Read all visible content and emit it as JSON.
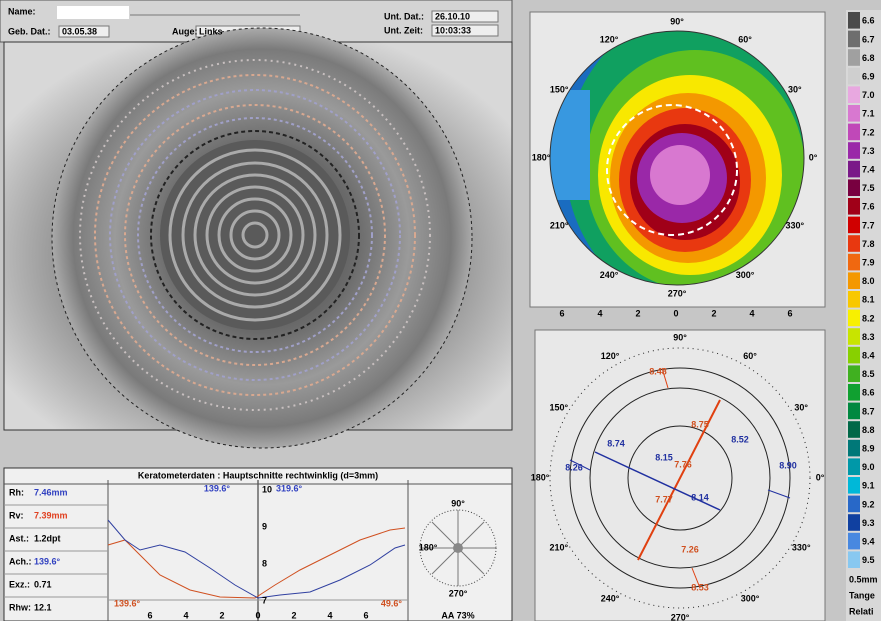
{
  "header": {
    "name_label": "Name:",
    "birth_label": "Geb. Dat.:",
    "birth_value": "03.05.38",
    "eye_label": "Auge:",
    "eye_value": "Links",
    "exam_date_label": "Unt. Dat.:",
    "exam_date_value": "26.10.10",
    "exam_time_label": "Unt. Zeit:",
    "exam_time_value": "10:03:33"
  },
  "keratometry": {
    "title": "Keratometerdaten : Hauptschnitte rechtwinklig (d=3mm)",
    "rows": [
      {
        "label": "Rh:",
        "value": "7.46mm",
        "color": "#3040c0"
      },
      {
        "label": "Rv:",
        "value": "7.39mm",
        "color": "#e04020"
      },
      {
        "label": "Ast.:",
        "value": "1.2dpt",
        "color": "#000000"
      },
      {
        "label": "Ach.:",
        "value": "139.6°",
        "color": "#3040c0"
      },
      {
        "label": "Exz.:",
        "value": "0.71",
        "color": "#000000"
      },
      {
        "label": "Rhw:",
        "value": "12.1",
        "color": "#000000"
      }
    ],
    "axis_left": "139.6°",
    "axis_right": "319.6°",
    "yticks": [
      "10",
      "9",
      "8",
      "7"
    ],
    "xticks": [
      "6",
      "4",
      "2",
      "0",
      "2",
      "4",
      "6"
    ],
    "corner_left": "139.6°",
    "corner_right": "49.6°",
    "mini_labels": [
      "90°",
      "180°",
      "270°"
    ],
    "footer": "AA 73%"
  },
  "map": {
    "angles": [
      "90°",
      "60°",
      "30°",
      "0°",
      "330°",
      "300°",
      "270°",
      "240°",
      "210°",
      "180°",
      "150°",
      "120°"
    ],
    "xticks": [
      "6",
      "4",
      "2",
      "0",
      "2",
      "4",
      "6"
    ]
  },
  "diagram": {
    "angles": [
      "90°",
      "60°",
      "30°",
      "0°",
      "330°",
      "300°",
      "270°",
      "240°",
      "210°",
      "180°",
      "150°",
      "120°"
    ],
    "values": [
      {
        "text": "8.48",
        "color": "#d05020"
      },
      {
        "text": "8.75",
        "color": "#d05020"
      },
      {
        "text": "8.52",
        "color": "#2030a0"
      },
      {
        "text": "8.90",
        "color": "#2030a0"
      },
      {
        "text": "8.26",
        "color": "#2030a0"
      },
      {
        "text": "8.74",
        "color": "#2030a0"
      },
      {
        "text": "8.15",
        "color": "#2030a0"
      },
      {
        "text": "7.76",
        "color": "#d05020"
      },
      {
        "text": "7.77",
        "color": "#d05020"
      },
      {
        "text": "8.14",
        "color": "#2030a0"
      },
      {
        "text": "7.26",
        "color": "#d05020"
      },
      {
        "text": "8.53",
        "color": "#d05020"
      }
    ]
  },
  "scale": {
    "rows": [
      {
        "label": "6.6",
        "color": "#4a4a4a"
      },
      {
        "label": "6.7",
        "color": "#6e6e6e"
      },
      {
        "label": "6.8",
        "color": "#a0a0a0"
      },
      {
        "label": "6.9",
        "color": "#cfcfcf"
      },
      {
        "label": "7.0",
        "color": "#e8a8e0"
      },
      {
        "label": "7.1",
        "color": "#d878d0"
      },
      {
        "label": "7.2",
        "color": "#c048b8"
      },
      {
        "label": "7.3",
        "color": "#9a28a8"
      },
      {
        "label": "7.4",
        "color": "#7a1888"
      },
      {
        "label": "7.5",
        "color": "#780040"
      },
      {
        "label": "7.6",
        "color": "#a00018"
      },
      {
        "label": "7.7",
        "color": "#d00000"
      },
      {
        "label": "7.8",
        "color": "#e83810"
      },
      {
        "label": "7.9",
        "color": "#f06810"
      },
      {
        "label": "8.0",
        "color": "#f49800"
      },
      {
        "label": "8.1",
        "color": "#f8c800"
      },
      {
        "label": "8.2",
        "color": "#f8f000"
      },
      {
        "label": "8.3",
        "color": "#c8e400"
      },
      {
        "label": "8.4",
        "color": "#88d000"
      },
      {
        "label": "8.5",
        "color": "#40b020"
      },
      {
        "label": "8.6",
        "color": "#10a030"
      },
      {
        "label": "8.7",
        "color": "#008840"
      },
      {
        "label": "8.8",
        "color": "#006848"
      },
      {
        "label": "8.9",
        "color": "#007878"
      },
      {
        "label": "9.0",
        "color": "#0098a8"
      },
      {
        "label": "9.1",
        "color": "#00b8d8"
      },
      {
        "label": "9.2",
        "color": "#2868c8"
      },
      {
        "label": "9.3",
        "color": "#1040a0"
      },
      {
        "label": "9.4",
        "color": "#4888e0"
      },
      {
        "label": "9.5",
        "color": "#88c8f0"
      }
    ],
    "step": "0.5mm",
    "mode": "Tange",
    "type": "Relati"
  }
}
